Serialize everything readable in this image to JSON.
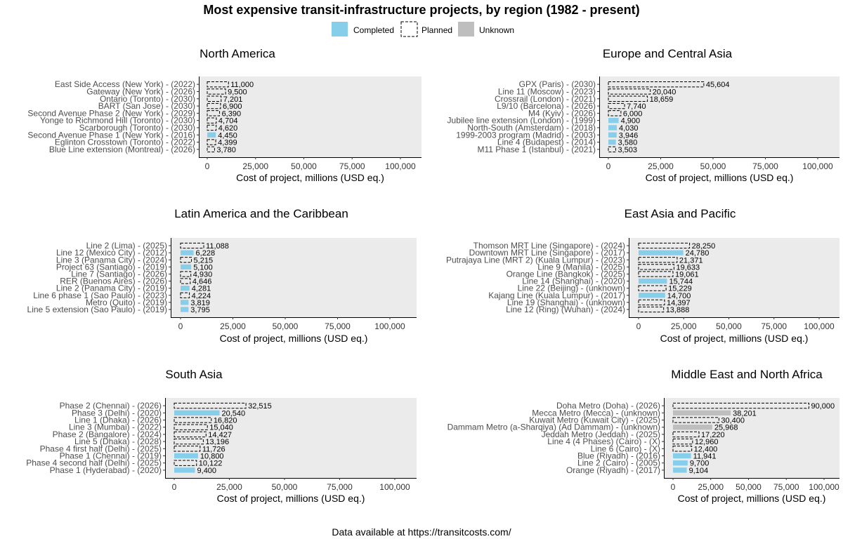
{
  "figure": {
    "title": "Most expensive transit-infrastructure projects, by region (1982 - present)",
    "caption": "Data available at https://transitcosts.com/"
  },
  "legend": [
    {
      "label": "Completed",
      "status": "completed"
    },
    {
      "label": "Planned",
      "status": "planned"
    },
    {
      "label": "Unknown",
      "status": "unknown"
    }
  ],
  "colors": {
    "completed": "#87CEEB",
    "unknown": "#BEBEBE",
    "panel_bg": "#EBEBEB",
    "planned_stroke": "#000000"
  },
  "chart_data": [
    {
      "type": "bar",
      "title": "North America",
      "xlabel": "Cost of project, millions (USD eq.)",
      "xlim": [
        0,
        100000
      ],
      "xticks": [
        "0",
        "25,000",
        "50,000",
        "75,000",
        "100,000"
      ],
      "grid": false,
      "bars": [
        {
          "label": "East Side Access (New York) - (2022)",
          "value": 11000,
          "value_label": "11,000",
          "status": "planned"
        },
        {
          "label": "Gateway (New York) - (2026)",
          "value": 9500,
          "value_label": "9,500",
          "status": "planned"
        },
        {
          "label": "Ontario (Toronto) - (2030)",
          "value": 7201,
          "value_label": "7,201",
          "status": "planned"
        },
        {
          "label": "BART (San Jose) - (2030)",
          "value": 6900,
          "value_label": "6,900",
          "status": "planned"
        },
        {
          "label": "Second Avenue Phase 2 (New York) - (2029)",
          "value": 6390,
          "value_label": "6,390",
          "status": "planned"
        },
        {
          "label": "Yonge to Richmond Hill (Toronto) - (2030)",
          "value": 4704,
          "value_label": "4,704",
          "status": "planned"
        },
        {
          "label": "Scarborough (Toronto) - (2030)",
          "value": 4620,
          "value_label": "4,620",
          "status": "planned"
        },
        {
          "label": "Second Avenue Phase 1 (New York) - (2016)",
          "value": 4450,
          "value_label": "4,450",
          "status": "completed"
        },
        {
          "label": "Eglinton Crosstown (Toronto) - (2022)",
          "value": 4399,
          "value_label": "4,399",
          "status": "planned"
        },
        {
          "label": "Blue Line extension (Montreal) - (2026)",
          "value": 3780,
          "value_label": "3,780",
          "status": "planned"
        }
      ]
    },
    {
      "type": "bar",
      "title": "Europe and Central Asia",
      "xlabel": "Cost of project, millions (USD eq.)",
      "xlim": [
        0,
        100000
      ],
      "xticks": [
        "0",
        "25,000",
        "50,000",
        "75,000",
        "100,000"
      ],
      "grid": false,
      "bars": [
        {
          "label": "GPX (Paris) - (2030)",
          "value": 45604,
          "value_label": "45,604",
          "status": "planned"
        },
        {
          "label": "Line 11 (Moscow) - (2023)",
          "value": 20040,
          "value_label": "20,040",
          "status": "planned"
        },
        {
          "label": "Crossrail (London) - (2021)",
          "value": 18659,
          "value_label": "18,659",
          "status": "planned"
        },
        {
          "label": "L9/10 (Barcelona) - (2026)",
          "value": 7740,
          "value_label": "7,740",
          "status": "planned"
        },
        {
          "label": "M4 (Kyiv) - (2026)",
          "value": 6000,
          "value_label": "6,000",
          "status": "planned"
        },
        {
          "label": "Jubilee line extension (London) - (1999)",
          "value": 4900,
          "value_label": "4,900",
          "status": "completed"
        },
        {
          "label": "North-South (Amsterdam) - (2018)",
          "value": 4030,
          "value_label": "4,030",
          "status": "completed"
        },
        {
          "label": "1999-2003 program (Madrid) - (2003)",
          "value": 3946,
          "value_label": "3,946",
          "status": "completed"
        },
        {
          "label": "Line 4 (Budapest) - (2014)",
          "value": 3580,
          "value_label": "3,580",
          "status": "completed"
        },
        {
          "label": "M11 Phase 1 (Istanbul) - (2021)",
          "value": 3503,
          "value_label": "3,503",
          "status": "planned"
        }
      ]
    },
    {
      "type": "bar",
      "title": "Latin America and the Caribbean",
      "xlabel": "Cost of project, millions (USD eq.)",
      "xlim": [
        0,
        100000
      ],
      "xticks": [
        "0",
        "25,000",
        "50,000",
        "75,000",
        "100,000"
      ],
      "grid": false,
      "bars": [
        {
          "label": "Line 2 (Lima) - (2025)",
          "value": 11088,
          "value_label": "11,088",
          "status": "planned"
        },
        {
          "label": "Line 12 (Mexico City) - (2012)",
          "value": 6228,
          "value_label": "6,228",
          "status": "completed"
        },
        {
          "label": "Line 3 (Panama City) - (2024)",
          "value": 5215,
          "value_label": "5,215",
          "status": "planned"
        },
        {
          "label": "Project 63 (Santiago) - (2019)",
          "value": 5100,
          "value_label": "5,100",
          "status": "completed"
        },
        {
          "label": "Line 7 (Santiago) - (2026)",
          "value": 4930,
          "value_label": "4,930",
          "status": "planned"
        },
        {
          "label": "RER (Buenos Aires) - (2026)",
          "value": 4646,
          "value_label": "4,646",
          "status": "planned"
        },
        {
          "label": "Line 2 (Panama City) - (2019)",
          "value": 4281,
          "value_label": "4,281",
          "status": "completed"
        },
        {
          "label": "Line 6 phase 1 (Sao Paulo) - (2023)",
          "value": 4224,
          "value_label": "4,224",
          "status": "planned"
        },
        {
          "label": "Metro (Quito) - (2019)",
          "value": 3819,
          "value_label": "3,819",
          "status": "completed"
        },
        {
          "label": "Line 5 extension (Sao Paulo) - (2019)",
          "value": 3795,
          "value_label": "3,795",
          "status": "completed"
        }
      ]
    },
    {
      "type": "bar",
      "title": "East Asia and Pacific",
      "xlabel": "Cost of project, millions (USD eq.)",
      "xlim": [
        0,
        100000
      ],
      "xticks": [
        "0",
        "25,000",
        "50,000",
        "75,000",
        "100,000"
      ],
      "grid": false,
      "bars": [
        {
          "label": "Thomson MRT Line (Singapore) - (2024)",
          "value": 28250,
          "value_label": "28,250",
          "status": "planned"
        },
        {
          "label": "Downtown MRT Line (Singapore) - (2017)",
          "value": 24780,
          "value_label": "24,780",
          "status": "completed"
        },
        {
          "label": "Putrajaya Line (MRT 2) (Kuala Lumpur) - (2023)",
          "value": 21371,
          "value_label": "21,371",
          "status": "planned"
        },
        {
          "label": "Line 9 (Manila) - (2025)",
          "value": 19633,
          "value_label": "19,633",
          "status": "planned"
        },
        {
          "label": "Orange Line (Bangkok) - (2025)",
          "value": 19061,
          "value_label": "19,061",
          "status": "planned"
        },
        {
          "label": "Line 14 (Shanghai) - (2020)",
          "value": 15744,
          "value_label": "15,744",
          "status": "completed"
        },
        {
          "label": "Line 22 (Beijing) - (unknown)",
          "value": 15229,
          "value_label": "15,229",
          "status": "planned"
        },
        {
          "label": "Kajang Line (Kuala Lumpur) - (2017)",
          "value": 14700,
          "value_label": "14,700",
          "status": "completed"
        },
        {
          "label": "Line 19 (Shanghai) - (unknown)",
          "value": 14397,
          "value_label": "14,397",
          "status": "planned"
        },
        {
          "label": "Line 12 (Ring) (Wuhan) - (2024)",
          "value": 13888,
          "value_label": "13,888",
          "status": "planned"
        }
      ]
    },
    {
      "type": "bar",
      "title": "South Asia",
      "xlabel": "Cost of project, millions (USD eq.)",
      "xlim": [
        0,
        100000
      ],
      "xticks": [
        "0",
        "25,000",
        "50,000",
        "75,000",
        "100,000"
      ],
      "grid": false,
      "bars": [
        {
          "label": "Phase 2 (Chennai) - (2026)",
          "value": 32515,
          "value_label": "32,515",
          "status": "planned"
        },
        {
          "label": "Phase 3 (Delhi) - (2020)",
          "value": 20540,
          "value_label": "20,540",
          "status": "completed"
        },
        {
          "label": "Line 1 (Dhaka) - (2026)",
          "value": 16820,
          "value_label": "16,820",
          "status": "planned"
        },
        {
          "label": "Line 3 (Mumbai) - (2022)",
          "value": 15040,
          "value_label": "15,040",
          "status": "planned"
        },
        {
          "label": "Phase 2 (Bangalore) - (2024)",
          "value": 14427,
          "value_label": "14,427",
          "status": "planned"
        },
        {
          "label": "Line 5 (Dhaka) - (2028)",
          "value": 13196,
          "value_label": "13,196",
          "status": "planned"
        },
        {
          "label": "Phase 4 first half (Delhi) - (2025)",
          "value": 11726,
          "value_label": "11,726",
          "status": "planned"
        },
        {
          "label": "Phase 1 (Chennai) - (2019)",
          "value": 10800,
          "value_label": "10,800",
          "status": "completed"
        },
        {
          "label": "Phase 4 second half (Delhi) - (2025)",
          "value": 10122,
          "value_label": "10,122",
          "status": "planned"
        },
        {
          "label": "Phase 1 (Hyderabad) - (2020)",
          "value": 9400,
          "value_label": "9,400",
          "status": "completed"
        }
      ]
    },
    {
      "type": "bar",
      "title": "Middle East and North Africa",
      "xlabel": "Cost of project, millions (USD eq.)",
      "xlim": [
        0,
        100000
      ],
      "xticks": [
        "0",
        "25,000",
        "50,000",
        "75,000",
        "100,000"
      ],
      "grid": false,
      "bars": [
        {
          "label": "Doha Metro (Doha) - (2026)",
          "value": 90000,
          "value_label": "90,000",
          "status": "planned"
        },
        {
          "label": "Mecca Metro (Mecca) - (unknown)",
          "value": 38201,
          "value_label": "38,201",
          "status": "unknown"
        },
        {
          "label": "Kuwait Metro (Kuwait City) - (2025)",
          "value": 30400,
          "value_label": "30,400",
          "status": "planned"
        },
        {
          "label": "Dammam Metro (a-Sharqiya) (Ad Dammam) - (unknown)",
          "value": 25968,
          "value_label": "25,968",
          "status": "unknown"
        },
        {
          "label": "Jeddah Metro (Jeddah) - (2025)",
          "value": 17220,
          "value_label": "17,220",
          "status": "planned"
        },
        {
          "label": "Line 4 (4 Phases) (Cairo) - (X)",
          "value": 12960,
          "value_label": "12,960",
          "status": "planned"
        },
        {
          "label": "Line 6 (Cairo) - (X)",
          "value": 12400,
          "value_label": "12,400",
          "status": "planned"
        },
        {
          "label": "Blue (Riyadh) - (2016)",
          "value": 11941,
          "value_label": "11,941",
          "status": "completed"
        },
        {
          "label": "Line 2 (Cairo) - (2005)",
          "value": 9700,
          "value_label": "9,700",
          "status": "completed"
        },
        {
          "label": "Orange (Riyadh) - (2017)",
          "value": 9104,
          "value_label": "9,104",
          "status": "completed"
        }
      ]
    }
  ]
}
